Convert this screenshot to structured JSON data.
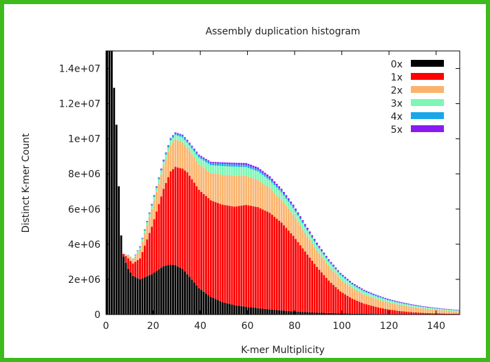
{
  "chart_data": {
    "type": "area",
    "title": "Assembly duplication histogram",
    "xlabel": "K-mer Multiplicity",
    "ylabel": "Distinct K-mer Count",
    "xlim": [
      0,
      150
    ],
    "ylim": [
      0,
      15000000
    ],
    "x_ticks": [
      {
        "value": 0,
        "label": "0"
      },
      {
        "value": 20,
        "label": "20"
      },
      {
        "value": 40,
        "label": "40"
      },
      {
        "value": 60,
        "label": "60"
      },
      {
        "value": 80,
        "label": "80"
      },
      {
        "value": 100,
        "label": "100"
      },
      {
        "value": 120,
        "label": "120"
      },
      {
        "value": 140,
        "label": "140"
      }
    ],
    "y_ticks": [
      {
        "value": 0,
        "label": "0"
      },
      {
        "value": 2000000,
        "label": "2e+06"
      },
      {
        "value": 4000000,
        "label": "4e+06"
      },
      {
        "value": 6000000,
        "label": "6e+06"
      },
      {
        "value": 8000000,
        "label": "8e+06"
      },
      {
        "value": 10000000,
        "label": "1e+07"
      },
      {
        "value": 12000000,
        "label": "1.2e+07"
      },
      {
        "value": 14000000,
        "label": "1.4e+07"
      }
    ],
    "legend_position": "top-right",
    "stacked": true,
    "x": [
      1,
      2,
      3,
      5,
      6,
      7,
      8,
      10,
      12,
      15,
      20,
      25,
      28,
      30,
      33,
      35,
      40,
      45,
      50,
      55,
      60,
      65,
      70,
      75,
      80,
      85,
      90,
      95,
      100,
      105,
      110,
      115,
      120,
      125,
      130,
      135,
      140,
      145,
      150
    ],
    "series": [
      {
        "name": "0x",
        "color": "#000000",
        "values": [
          15000000,
          15000000,
          15000000,
          10800000,
          7300000,
          4500000,
          3300000,
          2600000,
          2200000,
          2000000,
          2300000,
          2750000,
          2850000,
          2800000,
          2600000,
          2300000,
          1500000,
          1000000,
          700000,
          540000,
          440000,
          360000,
          290000,
          230000,
          180000,
          140000,
          110000,
          85000,
          65000,
          50000,
          40000,
          32000,
          25000,
          20000,
          16000,
          13000,
          10000,
          8000,
          6000
        ]
      },
      {
        "name": "1x",
        "color": "#ff0000",
        "values": [
          0,
          0,
          0,
          0,
          0,
          0,
          150000,
          600000,
          700000,
          1200000,
          2700000,
          4400000,
          5300000,
          5600000,
          5700000,
          5800000,
          5600000,
          5500000,
          5550000,
          5600000,
          5800000,
          5750000,
          5500000,
          5000000,
          4300000,
          3450000,
          2600000,
          1850000,
          1250000,
          850000,
          580000,
          400000,
          270000,
          180000,
          120000,
          80000,
          55000,
          40000,
          30000
        ]
      },
      {
        "name": "2x",
        "color": "#fbb36b",
        "values": [
          0,
          0,
          0,
          0,
          0,
          0,
          0,
          150000,
          200000,
          500000,
          1000000,
          1300000,
          1500000,
          1550000,
          1500000,
          1400000,
          1450000,
          1550000,
          1700000,
          1750000,
          1650000,
          1550000,
          1400000,
          1300000,
          1200000,
          1050000,
          930000,
          820000,
          700000,
          600000,
          520000,
          460000,
          400000,
          350000,
          300000,
          250000,
          210000,
          170000,
          140000
        ]
      },
      {
        "name": "3x",
        "color": "#7cf7b4",
        "values": [
          0,
          0,
          0,
          0,
          0,
          0,
          0,
          30000,
          50000,
          120000,
          200000,
          240000,
          260000,
          270000,
          280000,
          290000,
          380000,
          450000,
          500000,
          520000,
          500000,
          480000,
          450000,
          420000,
          380000,
          340000,
          300000,
          260000,
          230000,
          200000,
          170000,
          150000,
          130000,
          110000,
          95000,
          80000,
          70000,
          60000,
          50000
        ]
      },
      {
        "name": "4x",
        "color": "#1aa7ea",
        "values": [
          0,
          0,
          0,
          0,
          0,
          0,
          0,
          10000,
          20000,
          40000,
          60000,
          80000,
          90000,
          95000,
          100000,
          100000,
          110000,
          120000,
          130000,
          135000,
          130000,
          125000,
          115000,
          105000,
          95000,
          85000,
          75000,
          65000,
          58000,
          50000,
          45000,
          40000,
          35000,
          30000,
          26000,
          22000,
          20000,
          18000,
          16000
        ]
      },
      {
        "name": "5x",
        "color": "#8b1af2",
        "values": [
          0,
          0,
          0,
          0,
          0,
          0,
          0,
          5000,
          10000,
          20000,
          30000,
          40000,
          45000,
          50000,
          55000,
          55000,
          60000,
          70000,
          80000,
          90000,
          100000,
          110000,
          110000,
          100000,
          95000,
          85000,
          75000,
          68000,
          60000,
          55000,
          50000,
          45000,
          40000,
          36000,
          32000,
          28000,
          25000,
          22000,
          20000
        ]
      }
    ]
  }
}
